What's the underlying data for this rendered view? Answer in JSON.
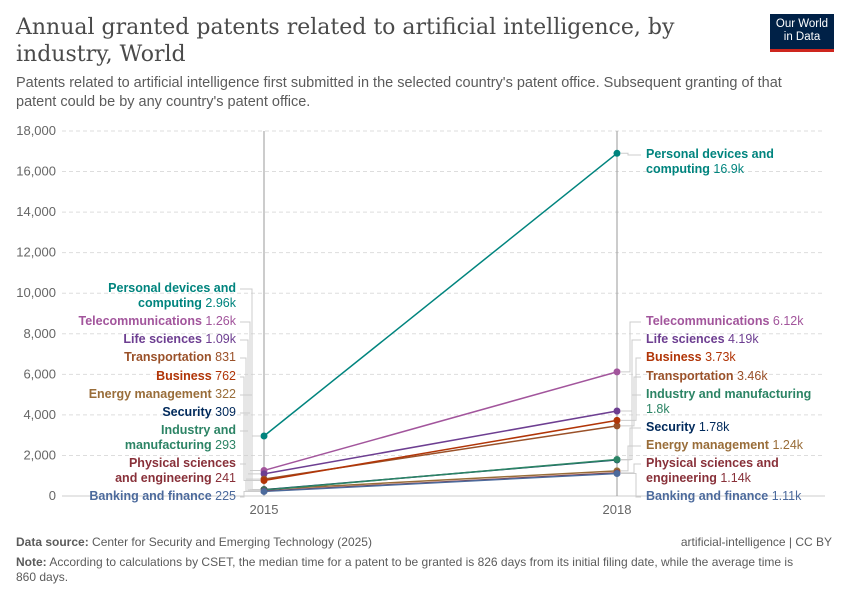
{
  "header": {
    "title": "Annual granted patents related to artificial intelligence, by industry, World",
    "subtitle": "Patents related to artificial intelligence first submitted in the selected country's patent office. Subsequent granting of that patent could be by any country's patent office.",
    "logo": "Our World in Data"
  },
  "footer": {
    "source_label": "Data source:",
    "source": "Center for Security and Emerging Technology (2025)",
    "license": "artificial-intelligence | CC BY",
    "note_label": "Note:",
    "note": "According to calculations by CSET, the median time for a patent to be granted is 826 days from its initial filing date, while the average time is 860 days."
  },
  "chart_data": {
    "type": "line",
    "x": [
      2015,
      2018
    ],
    "xticks": [
      "2015",
      "2018"
    ],
    "ylim": [
      0,
      18000
    ],
    "yticks": [
      "0",
      "2,000",
      "4,000",
      "6,000",
      "8,000",
      "10,000",
      "12,000",
      "14,000",
      "16,000",
      "18,000"
    ],
    "grid": true,
    "series": [
      {
        "name": "Personal devices and computing",
        "values": [
          2960,
          16900
        ],
        "labels": [
          "2.96k",
          "16.9k"
        ],
        "color": "#00847e"
      },
      {
        "name": "Telecommunications",
        "values": [
          1260,
          6120
        ],
        "labels": [
          "1.26k",
          "6.12k"
        ],
        "color": "#a2559c"
      },
      {
        "name": "Life sciences",
        "values": [
          1090,
          4190
        ],
        "labels": [
          "1.09k",
          "4.19k"
        ],
        "color": "#6d3e91"
      },
      {
        "name": "Transportation",
        "values": [
          831,
          3460
        ],
        "labels": [
          "831",
          "3.46k"
        ],
        "color": "#9a5129"
      },
      {
        "name": "Business",
        "values": [
          762,
          3730
        ],
        "labels": [
          "762",
          "3.73k"
        ],
        "color": "#b13507"
      },
      {
        "name": "Energy management",
        "values": [
          322,
          1240
        ],
        "labels": [
          "322",
          "1.24k"
        ],
        "color": "#996d39"
      },
      {
        "name": "Security",
        "values": [
          309,
          1780
        ],
        "labels": [
          "309",
          "1.78k"
        ],
        "color": "#00295b"
      },
      {
        "name": "Industry and manufacturing",
        "values": [
          293,
          1800
        ],
        "labels": [
          "293",
          "1.8k"
        ],
        "color": "#2c8465"
      },
      {
        "name": "Physical sciences and engineering",
        "values": [
          241,
          1140
        ],
        "labels": [
          "241",
          "1.14k"
        ],
        "color": "#883039"
      },
      {
        "name": "Banking and finance",
        "values": [
          225,
          1110
        ],
        "labels": [
          "225",
          "1.11k"
        ],
        "color": "#4c6a9c"
      }
    ]
  }
}
